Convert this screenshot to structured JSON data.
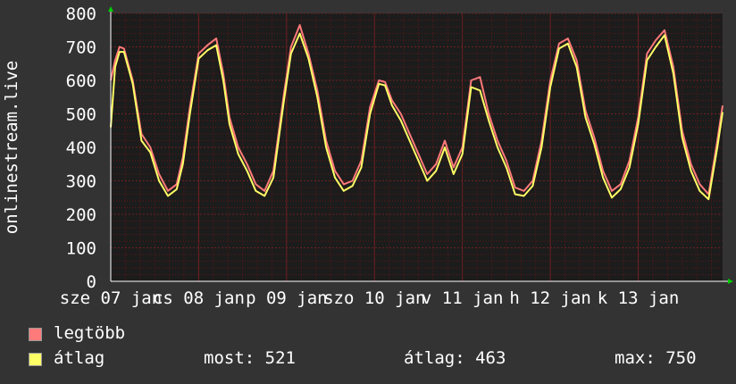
{
  "chart_data": {
    "type": "line",
    "ylabel": "onlinestream.live",
    "ylim": [
      0,
      800
    ],
    "y_ticks": [
      0,
      100,
      200,
      300,
      400,
      500,
      600,
      700,
      800
    ],
    "x_ticks": [
      {
        "x": 0,
        "label": "sze 07 jan"
      },
      {
        "x": 1,
        "label": "cs 08 jan"
      },
      {
        "x": 2,
        "label": "p 09 jan"
      },
      {
        "x": 3,
        "label": "szo 10 jan"
      },
      {
        "x": 4,
        "label": "v 11 jan"
      },
      {
        "x": 5,
        "label": "h 12 jan"
      },
      {
        "x": 6,
        "label": "k 13 jan"
      }
    ],
    "xlim": [
      0,
      6.96
    ],
    "grid": true,
    "colors": {
      "background": "#333333",
      "plot": "#1c1c1c",
      "grid_minor": "#5a1818",
      "grid_major": "#6e2020",
      "axis": "#ffffff",
      "legtobb": "#ff7a7a",
      "atlag": "#ffff66"
    },
    "series": [
      {
        "name": "legtöbb",
        "x": [
          0,
          0.05,
          0.1,
          0.15,
          0.25,
          0.35,
          0.45,
          0.55,
          0.65,
          0.75,
          0.82,
          0.9,
          1.0,
          1.1,
          1.2,
          1.28,
          1.35,
          1.45,
          1.55,
          1.65,
          1.75,
          1.85,
          1.97,
          2.05,
          2.15,
          2.25,
          2.35,
          2.45,
          2.55,
          2.65,
          2.75,
          2.85,
          2.95,
          3.05,
          3.12,
          3.2,
          3.3,
          3.4,
          3.5,
          3.6,
          3.7,
          3.8,
          3.9,
          4.0,
          4.1,
          4.2,
          4.3,
          4.4,
          4.5,
          4.6,
          4.7,
          4.8,
          4.9,
          5.0,
          5.1,
          5.2,
          5.3,
          5.4,
          5.5,
          5.6,
          5.7,
          5.8,
          5.9,
          6.0,
          6.1,
          6.2,
          6.3,
          6.4,
          6.5,
          6.6,
          6.7,
          6.8,
          6.9,
          6.96
        ],
        "values": [
          600,
          660,
          700,
          695,
          600,
          440,
          400,
          320,
          270,
          290,
          370,
          520,
          680,
          705,
          725,
          620,
          490,
          400,
          350,
          290,
          270,
          330,
          560,
          700,
          765,
          680,
          570,
          420,
          330,
          290,
          300,
          360,
          520,
          600,
          595,
          540,
          500,
          440,
          380,
          320,
          350,
          420,
          340,
          400,
          600,
          610,
          500,
          420,
          360,
          280,
          270,
          300,
          420,
          600,
          710,
          725,
          660,
          510,
          430,
          330,
          270,
          290,
          360,
          490,
          680,
          720,
          750,
          640,
          450,
          350,
          290,
          260,
          420,
          525
        ]
      },
      {
        "name": "átlag",
        "x": [
          0,
          0.05,
          0.1,
          0.15,
          0.25,
          0.35,
          0.45,
          0.55,
          0.65,
          0.75,
          0.82,
          0.9,
          1.0,
          1.1,
          1.2,
          1.28,
          1.35,
          1.45,
          1.55,
          1.65,
          1.75,
          1.85,
          1.97,
          2.05,
          2.15,
          2.25,
          2.35,
          2.45,
          2.55,
          2.65,
          2.75,
          2.85,
          2.95,
          3.05,
          3.12,
          3.2,
          3.3,
          3.4,
          3.5,
          3.6,
          3.7,
          3.8,
          3.9,
          4.0,
          4.1,
          4.2,
          4.3,
          4.4,
          4.5,
          4.6,
          4.7,
          4.8,
          4.9,
          5.0,
          5.1,
          5.2,
          5.3,
          5.4,
          5.5,
          5.6,
          5.7,
          5.8,
          5.9,
          6.0,
          6.1,
          6.2,
          6.3,
          6.4,
          6.5,
          6.6,
          6.7,
          6.8,
          6.9,
          6.96
        ],
        "values": [
          460,
          640,
          685,
          685,
          590,
          420,
          385,
          300,
          255,
          275,
          350,
          500,
          665,
          690,
          705,
          600,
          470,
          380,
          330,
          270,
          255,
          310,
          540,
          680,
          740,
          665,
          550,
          400,
          310,
          270,
          285,
          340,
          500,
          590,
          585,
          525,
          480,
          420,
          360,
          300,
          330,
          400,
          320,
          380,
          580,
          570,
          480,
          400,
          340,
          260,
          255,
          285,
          400,
          580,
          695,
          710,
          640,
          490,
          410,
          310,
          250,
          275,
          340,
          470,
          660,
          700,
          735,
          620,
          430,
          330,
          270,
          245,
          400,
          505
        ]
      }
    ]
  },
  "legend": {
    "items": [
      {
        "label": "legtöbb",
        "color": "#ff7a7a"
      },
      {
        "label": "átlag",
        "color": "#ffff66"
      }
    ],
    "stats": {
      "most_label": "most:",
      "most_value": "521",
      "atlag_label": "átlag:",
      "atlag_value": "463",
      "max_label": "max:",
      "max_value": "750"
    }
  }
}
